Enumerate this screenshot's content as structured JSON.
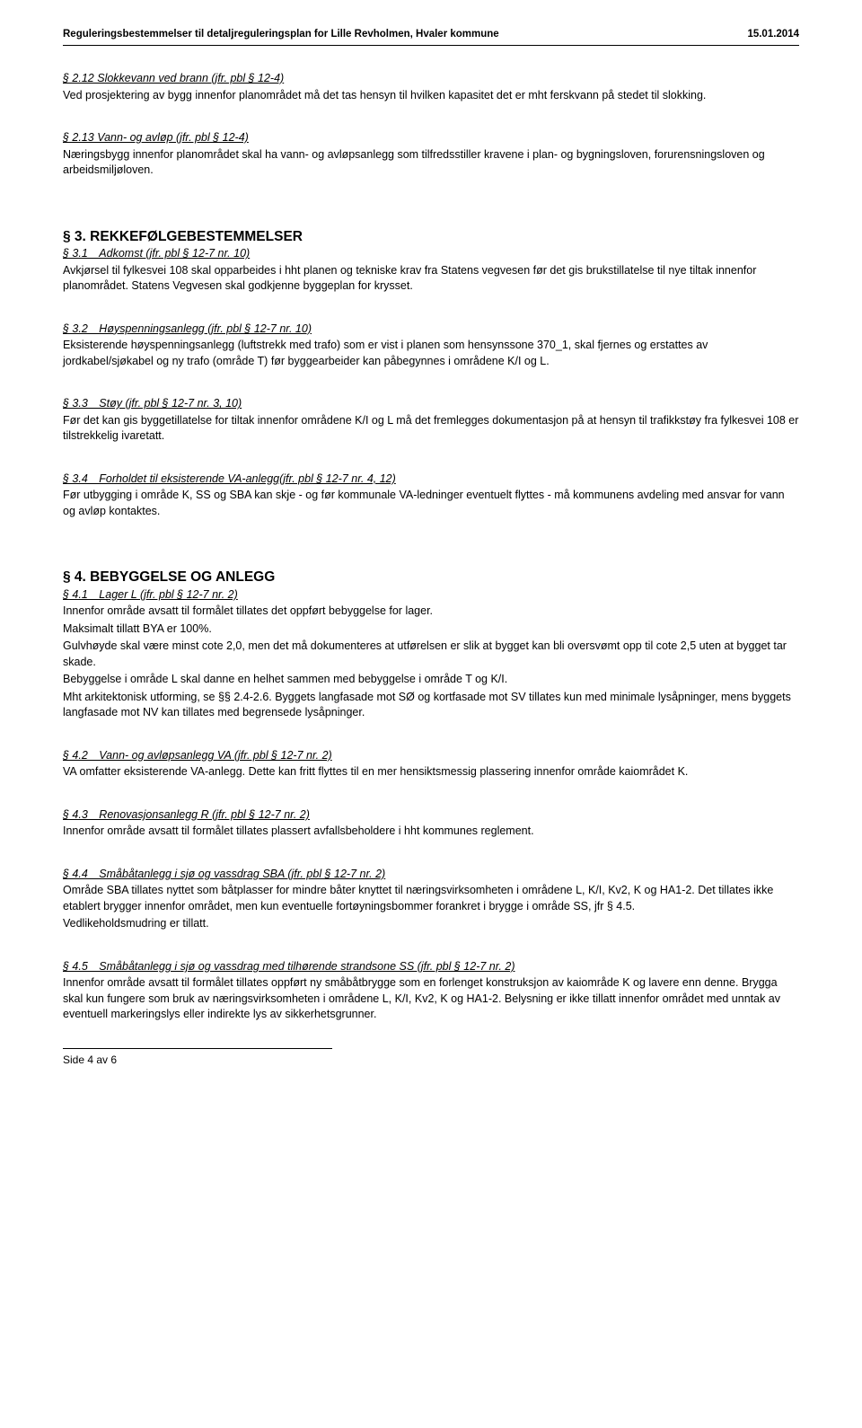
{
  "header": {
    "left": "Reguleringsbestemmelser til detaljreguleringsplan for Lille Revholmen, Hvaler kommune",
    "right": "15.01.2014"
  },
  "s212": {
    "title": "§ 2.12 Slokkevann ved brann (jfr. pbl § 12-4)",
    "body": "Ved prosjektering av bygg innenfor planområdet må det tas hensyn til hvilken kapasitet det er mht ferskvann på stedet til slokking."
  },
  "s213": {
    "title": "§ 2.13 Vann- og avløp (jfr. pbl § 12-4)",
    "body": "Næringsbygg innenfor planområdet skal ha vann- og avløpsanlegg som tilfredsstiller kravene i plan- og bygningsloven, forurensningsloven og arbeidsmiljøloven."
  },
  "sec3": {
    "title": "§ 3. REKKEFØLGEBESTEMMELSER",
    "s31": {
      "title": "§ 3.1 Adkomst (jfr. pbl § 12-7 nr. 10)",
      "body": "Avkjørsel til fylkesvei 108 skal opparbeides i hht planen og tekniske krav fra Statens vegvesen før det gis brukstillatelse til nye tiltak innenfor planområdet. Statens Vegvesen skal godkjenne byggeplan for krysset."
    },
    "s32": {
      "title": "§ 3.2 Høyspenningsanlegg (jfr. pbl § 12-7 nr. 10)",
      "body": "Eksisterende høyspenningsanlegg (luftstrekk med trafo) som er vist i planen som hensynssone 370_1, skal fjernes og erstattes av jordkabel/sjøkabel og ny trafo (område T) før byggearbeider kan påbegynnes i områdene K/I og L."
    },
    "s33": {
      "title": "§ 3.3 Støy (jfr. pbl § 12-7 nr. 3, 10)",
      "body": "Før det kan gis byggetillatelse for tiltak innenfor områdene K/I og L må det fremlegges dokumentasjon på at hensyn til trafikkstøy fra fylkesvei 108 er tilstrekkelig ivaretatt."
    },
    "s34": {
      "title": "§ 3.4 Forholdet til eksisterende VA-anlegg(jfr. pbl § 12-7 nr. 4, 12)",
      "body": "Før utbygging i område K, SS og SBA kan skje - og før kommunale VA-ledninger eventuelt flyttes - må kommunens avdeling med ansvar for vann og avløp kontaktes."
    }
  },
  "sec4": {
    "title": "§ 4. BEBYGGELSE OG ANLEGG",
    "s41": {
      "title": "§ 4.1 Lager L (jfr. pbl § 12-7 nr. 2)",
      "p1": "Innenfor område avsatt til formålet tillates det oppført bebyggelse for lager.",
      "p2": "Maksimalt tillatt BYA er 100%.",
      "p3": "Gulvhøyde skal være minst cote 2,0, men det må dokumenteres at utførelsen er slik at bygget kan bli oversvømt opp til cote 2,5 uten at bygget tar skade.",
      "p4": "Bebyggelse i område L skal danne en helhet sammen med bebyggelse i område T og K/I.",
      "p5": "Mht arkitektonisk utforming, se §§ 2.4-2.6. Byggets langfasade mot SØ og kortfasade mot SV tillates kun med minimale lysåpninger, mens byggets langfasade mot NV kan tillates med begrensede lysåpninger."
    },
    "s42": {
      "title": "§ 4.2 Vann- og avløpsanlegg VA (jfr. pbl § 12-7 nr. 2)",
      "body": "VA omfatter eksisterende VA-anlegg. Dette kan fritt flyttes til en mer hensiktsmessig plassering innenfor område kaiområdet K."
    },
    "s43": {
      "title": "§ 4.3 Renovasjonsanlegg R (jfr. pbl § 12-7 nr. 2)",
      "body": "Innenfor område avsatt til formålet tillates plassert avfallsbeholdere i hht kommunes reglement."
    },
    "s44": {
      "title": "§ 4.4 Småbåtanlegg i sjø og vassdrag SBA (jfr. pbl § 12-7 nr. 2)",
      "p1": "Område SBA tillates nyttet som båtplasser for mindre båter knyttet til næringsvirksomheten i områdene L, K/I, Kv2, K og HA1-2. Det tillates ikke etablert brygger innenfor området, men kun eventuelle fortøyningsbommer forankret i brygge i område SS, jfr § 4.5.",
      "p2": "Vedlikeholdsmudring er tillatt."
    },
    "s45": {
      "title": "§ 4.5 Småbåtanlegg i sjø og vassdrag med tilhørende strandsone SS (jfr. pbl § 12-7 nr. 2)",
      "body": "Innenfor område avsatt til formålet tillates oppført ny småbåtbrygge som en forlenget konstruksjon av kaiområde K og lavere enn denne. Brygga skal kun fungere som bruk av næringsvirksomheten i områdene L, K/I, Kv2, K og HA1-2. Belysning er ikke tillatt innenfor området med unntak av eventuell markeringslys eller indirekte lys av sikkerhetsgrunner."
    }
  },
  "footer": {
    "text": "Side 4 av 6"
  }
}
